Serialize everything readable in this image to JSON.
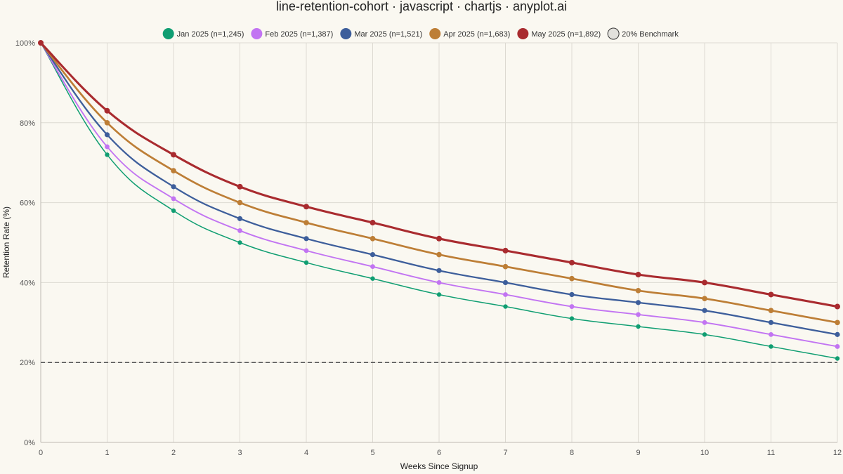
{
  "title": "line-retention-cohort · javascript · chartjs · anyplot.ai",
  "chart_data": {
    "type": "line",
    "x": [
      0,
      1,
      2,
      3,
      4,
      5,
      6,
      7,
      8,
      9,
      10,
      11,
      12
    ],
    "xlabel": "Weeks Since Signup",
    "ylabel": "Retention Rate (%)",
    "ylim": [
      0,
      100
    ],
    "y_tick_labels": [
      "0%",
      "20%",
      "40%",
      "60%",
      "80%",
      "100%"
    ],
    "grid": true,
    "legend_position": "top",
    "series": [
      {
        "name": "Jan 2025 (n=1,245)",
        "color": "#109E72",
        "values": [
          100,
          72,
          58,
          50,
          45,
          41,
          37,
          34,
          31,
          29,
          27,
          24,
          21
        ]
      },
      {
        "name": "Feb 2025 (n=1,387)",
        "color": "#C274F2",
        "values": [
          100,
          74,
          61,
          53,
          48,
          44,
          40,
          37,
          34,
          32,
          30,
          27,
          24
        ]
      },
      {
        "name": "Mar 2025 (n=1,521)",
        "color": "#3D5E9B",
        "values": [
          100,
          77,
          64,
          56,
          51,
          47,
          43,
          40,
          37,
          35,
          33,
          30,
          27
        ]
      },
      {
        "name": "Apr 2025 (n=1,683)",
        "color": "#BD7E36",
        "values": [
          100,
          80,
          68,
          60,
          55,
          51,
          47,
          44,
          41,
          38,
          36,
          33,
          30
        ]
      },
      {
        "name": "May 2025 (n=1,892)",
        "color": "#A92B2F",
        "values": [
          100,
          83,
          72,
          64,
          59,
          55,
          51,
          48,
          45,
          42,
          40,
          37,
          34
        ]
      }
    ],
    "benchmark": {
      "name": "20% Benchmark",
      "value": 20,
      "color": "#555555",
      "dashed": true
    }
  }
}
